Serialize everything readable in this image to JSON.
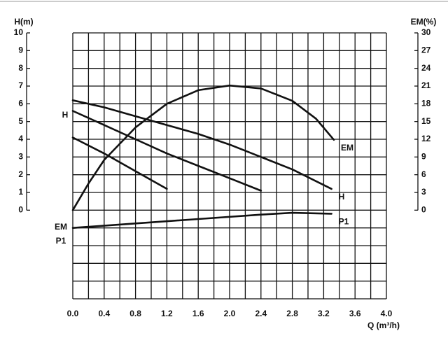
{
  "chart_data": {
    "type": "line",
    "ylabel": "H(m)",
    "y2label": "EM(%)",
    "xlabel": "Q (m³/h)",
    "xlim": [
      0,
      4.0
    ],
    "xticks": [
      {
        "value": 0,
        "label": "0.0"
      },
      0.4,
      0.8,
      1.2,
      1.6,
      {
        "value": 2,
        "label": "2.0"
      },
      2.4,
      2.8,
      3.2,
      3.6,
      {
        "value": 4,
        "label": "4.0"
      }
    ],
    "ylim": [
      -5,
      10
    ],
    "yticks": [
      0,
      1,
      2,
      3,
      4,
      5,
      6,
      7,
      8,
      9,
      10
    ],
    "y2lim": [
      -15,
      30
    ],
    "y2ticks": [
      0,
      3,
      6,
      9,
      12,
      15,
      18,
      21,
      24,
      27,
      30
    ],
    "grid": true,
    "annotations": [
      "H",
      "EM",
      "P1"
    ],
    "series": [
      {
        "color": "#111111",
        "x": [
          0,
          0.4,
          0.8,
          1.2
        ],
        "values": [
          4.1,
          3.2,
          2.2,
          1.2
        ]
      },
      {
        "color": "#111111",
        "x": [
          0,
          0.4,
          0.8,
          1.2,
          1.6,
          2.0,
          2.4
        ],
        "values": [
          5.6,
          4.8,
          4.0,
          3.2,
          2.5,
          1.8,
          1.1
        ]
      },
      {
        "name": "H",
        "color": "#111111",
        "x": [
          0,
          0.4,
          0.8,
          1.2,
          1.6,
          2.0,
          2.4,
          2.8,
          3.3
        ],
        "values": [
          6.2,
          5.8,
          5.3,
          4.8,
          4.3,
          3.7,
          3.0,
          2.3,
          1.2
        ]
      },
      {
        "name": "EM",
        "color": "#111111",
        "axis": "y2",
        "x": [
          0,
          0.2,
          0.4,
          0.8,
          1.2,
          1.6,
          2.0,
          2.4,
          2.8,
          3.1,
          3.33
        ],
        "values": [
          0,
          4.5,
          8.5,
          14,
          18,
          20.3,
          21.1,
          20.6,
          18.5,
          15.5,
          11.9
        ]
      },
      {
        "name": "P1",
        "color": "#111111",
        "x": [
          0,
          0.8,
          1.6,
          2.4,
          2.8,
          3.3
        ],
        "values": [
          -1.0,
          -0.75,
          -0.5,
          -0.25,
          -0.15,
          -0.2
        ]
      }
    ]
  }
}
